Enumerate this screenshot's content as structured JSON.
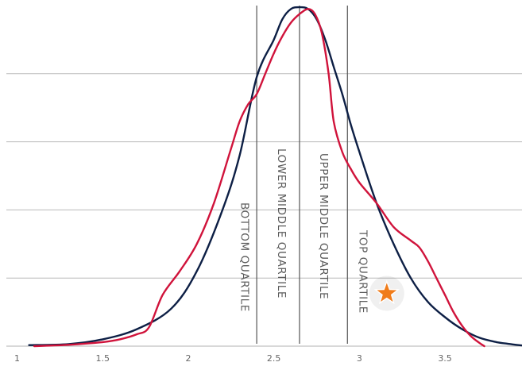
{
  "chart_data": {
    "type": "line",
    "title": "",
    "xlabel": "",
    "ylabel": "",
    "xlim": [
      0.9,
      3.95
    ],
    "ylim": [
      0,
      1.0
    ],
    "x_ticks": [
      1,
      1.5,
      2,
      2.5,
      3,
      3.5
    ],
    "x_tick_labels": [
      "1",
      "1.5",
      "2",
      "2.5",
      "3",
      "3.5"
    ],
    "y_gridlines": [
      0.2,
      0.4,
      0.6,
      0.8
    ],
    "grid": "horizontal",
    "legend": "none",
    "quartile_boundaries": [
      2.4,
      2.65,
      2.93
    ],
    "quartile_labels": [
      {
        "text": "BOTTOM QUARTILE",
        "x": 2.31
      },
      {
        "text": "LOWER MIDDLE  QUARTILE",
        "x": 2.525
      },
      {
        "text": "UPPER MIDDLE  QUARTILE",
        "x": 2.77
      },
      {
        "text": "TOP  QUARTILE",
        "x": 3.0
      }
    ],
    "marker": {
      "type": "star",
      "x": 3.16,
      "y": 0.155,
      "color": "#f07c1a"
    },
    "series": [
      {
        "color": "#0d1f45",
        "points": [
          [
            1.07,
            0.003
          ],
          [
            1.3,
            0.006
          ],
          [
            1.5,
            0.02
          ],
          [
            1.7,
            0.05
          ],
          [
            1.9,
            0.11
          ],
          [
            2.05,
            0.22
          ],
          [
            2.2,
            0.4
          ],
          [
            2.3,
            0.56
          ],
          [
            2.4,
            0.79
          ],
          [
            2.5,
            0.9
          ],
          [
            2.55,
            0.96
          ],
          [
            2.6,
            0.99
          ],
          [
            2.65,
            0.995
          ],
          [
            2.7,
            0.99
          ],
          [
            2.75,
            0.96
          ],
          [
            2.8,
            0.9
          ],
          [
            2.85,
            0.82
          ],
          [
            2.9,
            0.74
          ],
          [
            2.95,
            0.65
          ],
          [
            3.0,
            0.57
          ],
          [
            3.1,
            0.42
          ],
          [
            3.2,
            0.3
          ],
          [
            3.3,
            0.2
          ],
          [
            3.4,
            0.13
          ],
          [
            3.5,
            0.085
          ],
          [
            3.6,
            0.05
          ],
          [
            3.7,
            0.025
          ],
          [
            3.8,
            0.012
          ],
          [
            3.9,
            0.005
          ],
          [
            3.95,
            0.002
          ]
        ]
      },
      {
        "color": "#d0133b",
        "points": [
          [
            1.1,
            0.0
          ],
          [
            1.3,
            0.004
          ],
          [
            1.5,
            0.012
          ],
          [
            1.6,
            0.02
          ],
          [
            1.7,
            0.035
          ],
          [
            1.77,
            0.055
          ],
          [
            1.85,
            0.15
          ],
          [
            1.95,
            0.22
          ],
          [
            2.05,
            0.3
          ],
          [
            2.15,
            0.42
          ],
          [
            2.25,
            0.58
          ],
          [
            2.3,
            0.66
          ],
          [
            2.35,
            0.71
          ],
          [
            2.4,
            0.74
          ],
          [
            2.45,
            0.8
          ],
          [
            2.5,
            0.86
          ],
          [
            2.55,
            0.91
          ],
          [
            2.6,
            0.95
          ],
          [
            2.65,
            0.975
          ],
          [
            2.7,
            0.99
          ],
          [
            2.74,
            0.975
          ],
          [
            2.78,
            0.92
          ],
          [
            2.82,
            0.8
          ],
          [
            2.85,
            0.66
          ],
          [
            2.9,
            0.57
          ],
          [
            2.95,
            0.52
          ],
          [
            3.0,
            0.48
          ],
          [
            3.1,
            0.42
          ],
          [
            3.2,
            0.35
          ],
          [
            3.3,
            0.31
          ],
          [
            3.35,
            0.29
          ],
          [
            3.4,
            0.25
          ],
          [
            3.45,
            0.2
          ],
          [
            3.5,
            0.15
          ],
          [
            3.55,
            0.1
          ],
          [
            3.6,
            0.06
          ],
          [
            3.65,
            0.03
          ],
          [
            3.7,
            0.01
          ],
          [
            3.73,
            0.0
          ]
        ]
      }
    ]
  }
}
